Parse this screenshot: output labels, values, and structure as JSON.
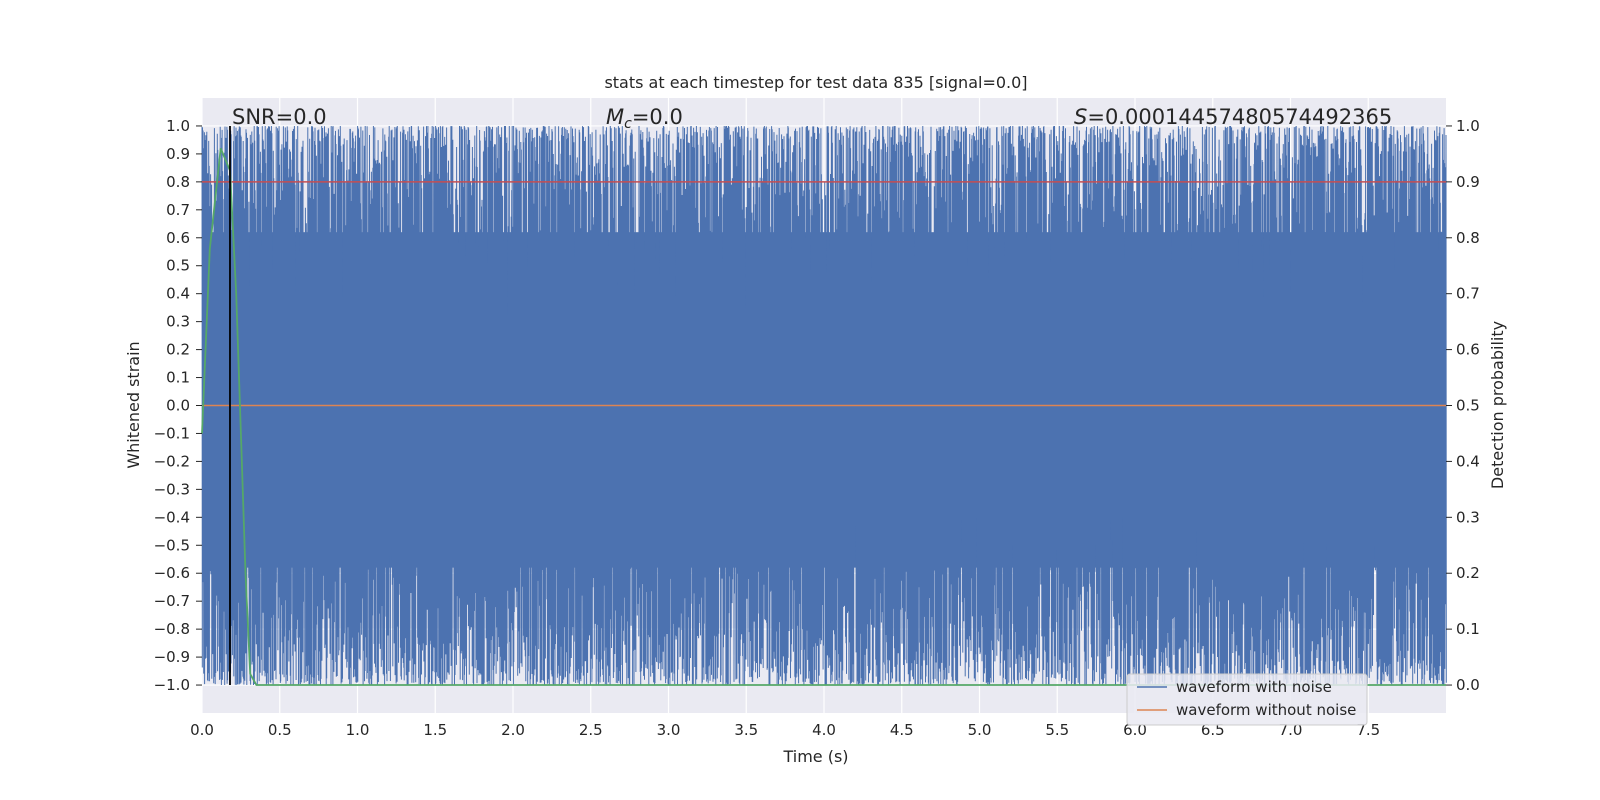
{
  "chart_data": {
    "type": "line",
    "title": "stats at each timestep for test data 835 [signal=0.0]",
    "xlabel": "Time (s)",
    "ylabel": "Whitened strain",
    "ylabel_right": "Detection probability",
    "xlim": [
      0.0,
      8.0
    ],
    "ylim": [
      -1.1,
      1.1
    ],
    "ylim_right": [
      -0.05,
      1.05
    ],
    "x_ticks": [
      "0.0",
      "0.5",
      "1.0",
      "1.5",
      "2.0",
      "2.5",
      "3.0",
      "3.5",
      "4.0",
      "4.5",
      "5.0",
      "5.5",
      "6.0",
      "6.5",
      "7.0",
      "7.5"
    ],
    "y_ticks": [
      "1.0",
      "0.9",
      "0.8",
      "0.7",
      "0.6",
      "0.5",
      "0.4",
      "0.3",
      "0.2",
      "0.1",
      "0.0",
      "−0.1",
      "−0.2",
      "−0.3",
      "−0.4",
      "−0.5",
      "−0.6",
      "−0.7",
      "−0.8",
      "−0.9",
      "−1.0"
    ],
    "y_ticks_right": [
      "1.0",
      "0.9",
      "0.8",
      "0.7",
      "0.6",
      "0.5",
      "0.4",
      "0.3",
      "0.2",
      "0.1",
      "0.0"
    ],
    "grid": true,
    "annotations": {
      "snr": "SNR=0.0",
      "mc_symbol": "M",
      "mc_sub": "c",
      "mc_value": "=0.0",
      "s_symbol": "S",
      "s_value": "=0.00014457480574492365"
    },
    "legend": {
      "placement": "bottom-right",
      "entries": [
        {
          "label": "waveform with noise",
          "color": "#4c72b0"
        },
        {
          "label": "waveform without noise",
          "color": "#dd8452"
        }
      ]
    },
    "series": [
      {
        "name": "waveform with noise",
        "color": "#4c72b0",
        "x_range": [
          0.0,
          8.0
        ],
        "y_range": [
          -1.0,
          1.0
        ]
      },
      {
        "name": "waveform without noise",
        "color": "#dd8452",
        "x": [
          0.0,
          8.0
        ],
        "y": [
          0.0,
          0.0
        ]
      },
      {
        "color": "#55a868",
        "axis": "right",
        "x": [
          0.0,
          0.05,
          0.12,
          0.18,
          0.22,
          0.25,
          0.28,
          0.31,
          0.35,
          8.0
        ],
        "y": [
          0.45,
          0.78,
          0.96,
          0.92,
          0.7,
          0.45,
          0.2,
          0.02,
          0.0,
          0.0
        ]
      },
      {
        "color": "#c44e52",
        "axis": "right",
        "x": [
          0.0,
          8.0
        ],
        "y": [
          0.9,
          0.9
        ]
      }
    ],
    "vline": {
      "x": 0.18,
      "color": "#000000"
    }
  }
}
